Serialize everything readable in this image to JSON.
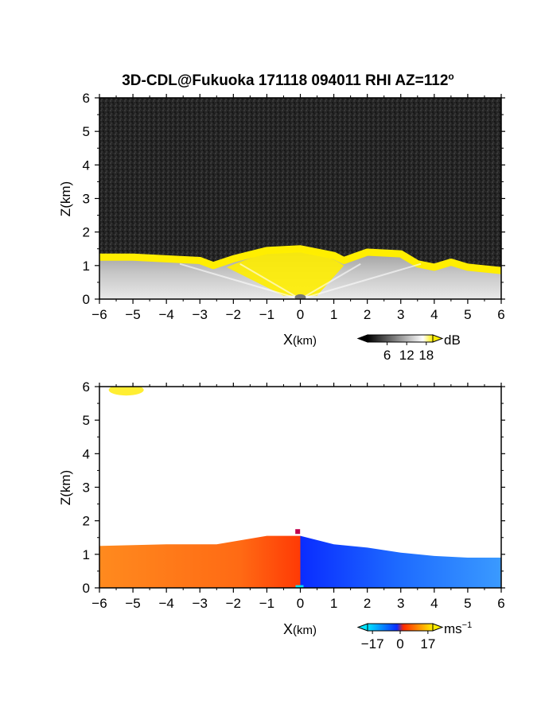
{
  "title": {
    "main": "3D-CDL@Fukuoka 171118 094011 RHI AZ=112",
    "superscript": "o"
  },
  "chart_data": [
    {
      "type": "heatmap",
      "field": "intensity",
      "xlabel_main": "X",
      "xlabel_unit": "(km)",
      "ylabel": "Z(km)",
      "xlim": [
        -6,
        6
      ],
      "ylim": [
        0,
        6
      ],
      "x_ticks": [
        "−6",
        "−5",
        "−4",
        "−3",
        "−2",
        "−1",
        "0",
        "1",
        "2",
        "3",
        "4",
        "5",
        "6"
      ],
      "y_ticks": [
        "0",
        "1",
        "2",
        "3",
        "4",
        "5",
        "6"
      ],
      "colorbar": {
        "unit": "dB",
        "range": [
          0,
          20
        ],
        "ticks": [
          "6",
          "12",
          "18"
        ],
        "tick_values": [
          6,
          12,
          18
        ],
        "colors": [
          "#000000",
          "#ffffff",
          "#ffee00"
        ]
      },
      "background_color": "#2a2a2a",
      "highlight_color": "#ffee00",
      "boundary_layer_top_km": [
        [
          -6,
          1.25
        ],
        [
          -5,
          1.25
        ],
        [
          -4,
          1.2
        ],
        [
          -3,
          1.15
        ],
        [
          -2.6,
          1.0
        ],
        [
          -2,
          1.2
        ],
        [
          -1,
          1.45
        ],
        [
          0,
          1.5
        ],
        [
          1,
          1.3
        ],
        [
          1.3,
          1.15
        ],
        [
          2,
          1.4
        ],
        [
          3,
          1.35
        ],
        [
          3.5,
          1.05
        ],
        [
          4,
          0.95
        ],
        [
          4.5,
          1.1
        ],
        [
          5,
          0.95
        ],
        [
          6,
          0.85
        ]
      ]
    },
    {
      "type": "heatmap",
      "field": "doppler_velocity",
      "xlabel_main": "X",
      "xlabel_unit": "(km)",
      "ylabel": "Z(km)",
      "xlim": [
        -6,
        6
      ],
      "ylim": [
        0,
        6
      ],
      "x_ticks": [
        "−6",
        "−5",
        "−4",
        "−3",
        "−2",
        "−1",
        "0",
        "1",
        "2",
        "3",
        "4",
        "5",
        "6"
      ],
      "y_ticks": [
        "0",
        "1",
        "2",
        "3",
        "4",
        "5",
        "6"
      ],
      "colorbar": {
        "unit_main": "ms",
        "unit_sup": "−1",
        "range": [
          -20,
          20
        ],
        "ticks": [
          "−17",
          "0",
          "17"
        ],
        "tick_values": [
          -17,
          0,
          17
        ],
        "colors": [
          "#00e5ff",
          "#0a2cff",
          "#ff2a00",
          "#ffee00"
        ]
      },
      "negative_color": "#1e6cff",
      "positive_color": "#ff7a1a",
      "echo_top_km": [
        [
          -6,
          1.25
        ],
        [
          -4,
          1.3
        ],
        [
          -2.5,
          1.3
        ],
        [
          -1,
          1.55
        ],
        [
          0,
          1.55
        ],
        [
          1,
          1.3
        ],
        [
          2,
          1.2
        ],
        [
          3,
          1.05
        ],
        [
          4,
          0.95
        ],
        [
          5,
          0.9
        ],
        [
          6,
          0.9
        ]
      ]
    }
  ]
}
